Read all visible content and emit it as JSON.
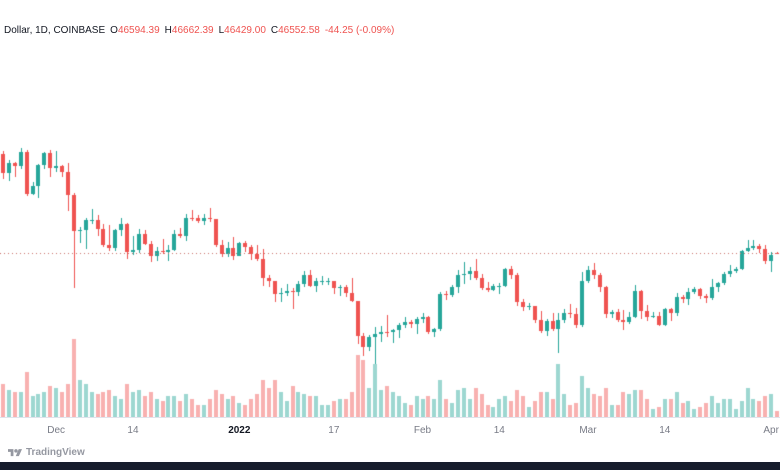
{
  "header": {
    "symbol_label": "Dollar, 1D, COINBASE",
    "ohlc": {
      "o_label": "O",
      "o_value": "46594.39",
      "h_label": "H",
      "h_value": "46662.39",
      "l_label": "L",
      "l_value": "46429.00",
      "c_label": "C",
      "c_value": "46552.58",
      "change": "-44.25 (-0.09%)"
    }
  },
  "watermark": {
    "brand": "TradingView"
  },
  "colors": {
    "up": "#26a69a",
    "down": "#ef5350",
    "vol_up": "rgba(38,166,154,0.45)",
    "vol_down": "rgba(239,83,80,0.45)",
    "price_line": "#c96f68",
    "text": "#131722",
    "muted": "#787b86",
    "axis_border": "#e0e3eb",
    "bottom_bar": "#161c2c"
  },
  "chart_data": {
    "type": "candlestick",
    "interval": "1D",
    "exchange": "COINBASE",
    "legend_text": "Dollar, 1D, COINBASE O46594.39 H46662.39 L46429.00 C46552.58 -44.25 (-0.09%)",
    "last_quote": {
      "open": 46594.39,
      "high": 46662.39,
      "low": 46429.0,
      "close": 46552.58,
      "change": -44.25,
      "change_pct": -0.09
    },
    "price_line_value": 46552.58,
    "price_view": {
      "min": 26500,
      "max": 77500
    },
    "vol_view": {
      "max": 38,
      "px": 78
    },
    "grid": false,
    "legend_position": "top-left",
    "x_ticks": [
      {
        "i": 9,
        "label": "Dec",
        "major": false
      },
      {
        "i": 22,
        "label": "14",
        "major": false
      },
      {
        "i": 40,
        "label": "2022",
        "major": true
      },
      {
        "i": 56,
        "label": "17",
        "major": false
      },
      {
        "i": 71,
        "label": "Feb",
        "major": false
      },
      {
        "i": 84,
        "label": "14",
        "major": false
      },
      {
        "i": 99,
        "label": "Mar",
        "major": false
      },
      {
        "i": 112,
        "label": "14",
        "major": false
      },
      {
        "i": 130,
        "label": "Apr",
        "major": false
      }
    ],
    "candle_fields": [
      "date",
      "open",
      "high",
      "low",
      "close",
      "volume"
    ],
    "candles": [
      [
        "2021-11-22",
        58700,
        59050,
        55620,
        56290,
        16
      ],
      [
        "2021-11-23",
        56290,
        57880,
        55320,
        57580,
        13
      ],
      [
        "2021-11-24",
        57580,
        57730,
        55870,
        57180,
        12
      ],
      [
        "2021-11-25",
        57180,
        59400,
        56850,
        58960,
        12
      ],
      [
        "2021-11-26",
        58960,
        59100,
        53520,
        53720,
        22
      ],
      [
        "2021-11-27",
        53720,
        55280,
        53610,
        54730,
        10
      ],
      [
        "2021-11-28",
        54730,
        57440,
        53290,
        57270,
        11
      ],
      [
        "2021-11-29",
        57270,
        58880,
        56780,
        58780,
        12
      ],
      [
        "2021-11-30",
        58780,
        59200,
        55880,
        57000,
        15
      ],
      [
        "2021-12-01",
        57000,
        59080,
        56470,
        57200,
        14
      ],
      [
        "2021-12-02",
        57200,
        57380,
        55830,
        56480,
        12
      ],
      [
        "2021-12-03",
        56480,
        57550,
        51680,
        53600,
        16
      ],
      [
        "2021-12-04",
        53600,
        53860,
        42330,
        49200,
        38
      ],
      [
        "2021-12-05",
        49200,
        49680,
        47720,
        49400,
        18
      ],
      [
        "2021-12-06",
        49400,
        50890,
        47100,
        50580,
        16
      ],
      [
        "2021-12-07",
        50580,
        51940,
        50080,
        50620,
        12
      ],
      [
        "2021-12-08",
        50620,
        51180,
        48660,
        49440,
        11
      ],
      [
        "2021-12-09",
        49440,
        50100,
        47320,
        47580,
        12
      ],
      [
        "2021-12-10",
        47580,
        50040,
        46860,
        47130,
        13
      ],
      [
        "2021-12-11",
        47130,
        49480,
        46750,
        49380,
        10
      ],
      [
        "2021-12-12",
        49380,
        50780,
        48640,
        50070,
        9
      ],
      [
        "2021-12-13",
        50070,
        50190,
        45790,
        46700,
        16
      ],
      [
        "2021-12-14",
        46700,
        48640,
        46290,
        46880,
        12
      ],
      [
        "2021-12-15",
        46880,
        49480,
        46550,
        48860,
        13
      ],
      [
        "2021-12-16",
        48860,
        49430,
        47510,
        47650,
        10
      ],
      [
        "2021-12-17",
        47650,
        47990,
        45460,
        46180,
        12
      ],
      [
        "2021-12-18",
        46180,
        47300,
        45540,
        46860,
        9
      ],
      [
        "2021-12-19",
        46860,
        48280,
        46430,
        46700,
        8
      ],
      [
        "2021-12-20",
        46700,
        47530,
        45580,
        46920,
        10
      ],
      [
        "2021-12-21",
        46920,
        49330,
        46780,
        48890,
        10
      ],
      [
        "2021-12-22",
        48890,
        49580,
        48420,
        48590,
        8
      ],
      [
        "2021-12-23",
        48590,
        51380,
        48070,
        50830,
        11
      ],
      [
        "2021-12-24",
        50830,
        51810,
        50510,
        50820,
        9
      ],
      [
        "2021-12-25",
        50820,
        51170,
        50180,
        50430,
        6
      ],
      [
        "2021-12-26",
        50430,
        51280,
        49990,
        50810,
        6
      ],
      [
        "2021-12-27",
        50810,
        52080,
        50360,
        50700,
        9
      ],
      [
        "2021-12-28",
        50700,
        50710,
        47310,
        47550,
        13
      ],
      [
        "2021-12-29",
        47550,
        48140,
        46080,
        46460,
        11
      ],
      [
        "2021-12-30",
        46460,
        47900,
        46010,
        47120,
        9
      ],
      [
        "2021-12-31",
        47120,
        48470,
        45650,
        46210,
        10
      ],
      [
        "2022-01-01",
        46210,
        47950,
        46210,
        47730,
        7
      ],
      [
        "2022-01-02",
        47730,
        47990,
        46650,
        47300,
        6
      ],
      [
        "2022-01-03",
        47300,
        47570,
        45690,
        46440,
        9
      ],
      [
        "2022-01-04",
        46440,
        47520,
        45540,
        45830,
        11
      ],
      [
        "2022-01-05",
        45830,
        47070,
        42500,
        43450,
        18
      ],
      [
        "2022-01-06",
        43450,
        43810,
        42450,
        43090,
        14
      ],
      [
        "2022-01-07",
        43090,
        43120,
        40510,
        41560,
        18
      ],
      [
        "2022-01-08",
        41560,
        42310,
        40510,
        41680,
        12
      ],
      [
        "2022-01-09",
        41680,
        42790,
        41250,
        41860,
        8
      ],
      [
        "2022-01-10",
        41860,
        42250,
        39660,
        41820,
        15
      ],
      [
        "2022-01-11",
        41820,
        43090,
        41290,
        42740,
        12
      ],
      [
        "2022-01-12",
        42740,
        44300,
        42450,
        43900,
        11
      ],
      [
        "2022-01-13",
        43900,
        44440,
        42360,
        42580,
        10
      ],
      [
        "2022-01-14",
        42580,
        43460,
        41790,
        43090,
        10
      ],
      [
        "2022-01-15",
        43090,
        43790,
        42610,
        43100,
        6
      ],
      [
        "2022-01-16",
        43100,
        43490,
        42590,
        43110,
        6
      ],
      [
        "2022-01-17",
        43110,
        43180,
        41560,
        42250,
        8
      ],
      [
        "2022-01-18",
        42250,
        42690,
        41290,
        42370,
        9
      ],
      [
        "2022-01-19",
        42370,
        42590,
        41140,
        41680,
        9
      ],
      [
        "2022-01-20",
        41680,
        43490,
        40560,
        40680,
        12
      ],
      [
        "2022-01-21",
        40680,
        40700,
        35410,
        36460,
        30
      ],
      [
        "2022-01-22",
        36460,
        36750,
        34010,
        35070,
        28
      ],
      [
        "2022-01-23",
        35070,
        36560,
        34620,
        36280,
        14
      ],
      [
        "2022-01-24",
        36280,
        37550,
        32950,
        36650,
        26
      ],
      [
        "2022-01-25",
        36650,
        37590,
        35700,
        36950,
        13
      ],
      [
        "2022-01-26",
        36950,
        38940,
        36250,
        36840,
        15
      ],
      [
        "2022-01-27",
        36840,
        37240,
        35540,
        37160,
        12
      ],
      [
        "2022-01-28",
        37160,
        38000,
        36160,
        37780,
        10
      ],
      [
        "2022-01-29",
        37780,
        38750,
        37350,
        38140,
        7
      ],
      [
        "2022-01-30",
        38140,
        38360,
        37380,
        37920,
        6
      ],
      [
        "2022-01-31",
        37920,
        38740,
        36650,
        38480,
        10
      ],
      [
        "2022-02-01",
        38480,
        39270,
        38040,
        38740,
        9
      ],
      [
        "2022-02-02",
        38740,
        38890,
        36590,
        36920,
        10
      ],
      [
        "2022-02-03",
        36920,
        37400,
        36300,
        37310,
        9
      ],
      [
        "2022-02-04",
        37310,
        41740,
        37050,
        41570,
        18
      ],
      [
        "2022-02-05",
        41570,
        41940,
        40860,
        41380,
        9
      ],
      [
        "2022-02-06",
        41380,
        42690,
        41160,
        42400,
        7
      ],
      [
        "2022-02-07",
        42400,
        44490,
        41690,
        43840,
        13
      ],
      [
        "2022-02-08",
        43840,
        45490,
        42710,
        44040,
        14
      ],
      [
        "2022-02-09",
        44040,
        44790,
        43210,
        44400,
        9
      ],
      [
        "2022-02-10",
        44400,
        45840,
        43210,
        43500,
        14
      ],
      [
        "2022-02-11",
        43500,
        43940,
        41990,
        42240,
        11
      ],
      [
        "2022-02-12",
        42240,
        43040,
        41750,
        42050,
        6
      ],
      [
        "2022-02-13",
        42050,
        42740,
        41860,
        42530,
        5
      ],
      [
        "2022-02-14",
        42530,
        42840,
        41550,
        42550,
        9
      ],
      [
        "2022-02-15",
        42550,
        44740,
        42460,
        44560,
        10
      ],
      [
        "2022-02-16",
        44560,
        44930,
        43330,
        43880,
        8
      ],
      [
        "2022-02-17",
        43880,
        44140,
        40100,
        40520,
        13
      ],
      [
        "2022-02-18",
        40520,
        40940,
        39440,
        39970,
        10
      ],
      [
        "2022-02-19",
        39970,
        40440,
        39640,
        40100,
        5
      ],
      [
        "2022-02-20",
        40100,
        40120,
        38040,
        38380,
        8
      ],
      [
        "2022-02-21",
        38380,
        39490,
        36810,
        37000,
        12
      ],
      [
        "2022-02-22",
        37000,
        38440,
        36350,
        38230,
        12
      ],
      [
        "2022-02-23",
        38230,
        39240,
        37060,
        37250,
        9
      ],
      [
        "2022-02-24",
        37250,
        39190,
        34310,
        38330,
        26
      ],
      [
        "2022-02-25",
        38330,
        39690,
        38040,
        39220,
        11
      ],
      [
        "2022-02-26",
        39220,
        40290,
        38590,
        39100,
        6
      ],
      [
        "2022-02-27",
        39100,
        39840,
        37440,
        37700,
        7
      ],
      [
        "2022-02-28",
        37700,
        44190,
        37450,
        43190,
        20
      ],
      [
        "2022-03-01",
        43190,
        44940,
        42840,
        44420,
        14
      ],
      [
        "2022-03-02",
        44420,
        45390,
        43340,
        43890,
        11
      ],
      [
        "2022-03-03",
        43890,
        44090,
        41840,
        42450,
        10
      ],
      [
        "2022-03-04",
        42450,
        42540,
        38590,
        39140,
        14
      ],
      [
        "2022-03-05",
        39140,
        39590,
        38600,
        39400,
        6
      ],
      [
        "2022-03-06",
        39400,
        39690,
        38090,
        38420,
        6
      ],
      [
        "2022-03-07",
        38420,
        39540,
        37160,
        38060,
        12
      ],
      [
        "2022-03-08",
        38060,
        39340,
        37860,
        38730,
        11
      ],
      [
        "2022-03-09",
        38730,
        42590,
        38650,
        41940,
        13
      ],
      [
        "2022-03-10",
        41940,
        42040,
        38540,
        39420,
        13
      ],
      [
        "2022-03-11",
        39420,
        40240,
        38220,
        38730,
        9
      ],
      [
        "2022-03-12",
        38730,
        39390,
        38650,
        38810,
        4
      ],
      [
        "2022-03-13",
        38810,
        39290,
        37590,
        37790,
        5
      ],
      [
        "2022-03-14",
        37790,
        39890,
        37580,
        39670,
        9
      ],
      [
        "2022-03-15",
        39670,
        39880,
        38190,
        39280,
        9
      ],
      [
        "2022-03-16",
        39280,
        41690,
        38840,
        41140,
        12
      ],
      [
        "2022-03-17",
        41140,
        41470,
        40490,
        40950,
        7
      ],
      [
        "2022-03-18",
        40950,
        42310,
        40190,
        41770,
        8
      ],
      [
        "2022-03-19",
        41770,
        42390,
        41490,
        42190,
        4
      ],
      [
        "2022-03-20",
        42190,
        42290,
        40910,
        41280,
        5
      ],
      [
        "2022-03-21",
        41280,
        41540,
        40440,
        41020,
        7
      ],
      [
        "2022-03-22",
        41020,
        43350,
        40870,
        42370,
        10
      ],
      [
        "2022-03-23",
        42370,
        43020,
        41740,
        42900,
        7
      ],
      [
        "2022-03-24",
        42900,
        44240,
        42590,
        44010,
        9
      ],
      [
        "2022-03-25",
        44010,
        45090,
        43590,
        44330,
        9
      ],
      [
        "2022-03-26",
        44330,
        44790,
        44090,
        44540,
        4
      ],
      [
        "2022-03-27",
        44540,
        46940,
        44430,
        46850,
        8
      ],
      [
        "2022-03-28",
        46850,
        48190,
        46650,
        47150,
        14
      ],
      [
        "2022-03-29",
        47150,
        48090,
        46940,
        47470,
        9
      ],
      [
        "2022-03-30",
        47470,
        47690,
        46540,
        47100,
        8
      ],
      [
        "2022-03-31",
        47100,
        47590,
        45240,
        45540,
        10
      ],
      [
        "2022-04-01",
        45540,
        46690,
        44240,
        46300,
        11
      ],
      [
        "2022-04-02",
        46594.39,
        46662.39,
        46429.0,
        46552.58,
        3
      ]
    ]
  }
}
